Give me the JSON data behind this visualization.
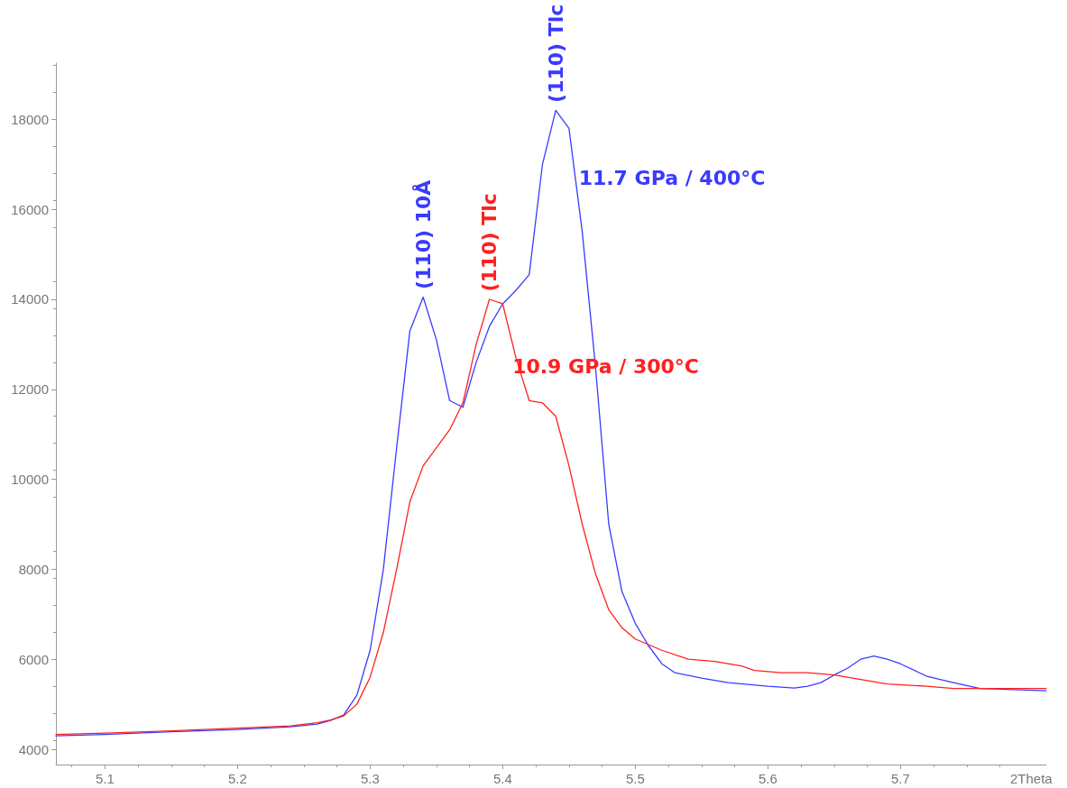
{
  "chart_data": {
    "type": "line",
    "xlabel": "2Theta",
    "xlim": [
      5.063,
      5.81
    ],
    "xticks": [
      5.1,
      5.2,
      5.3,
      5.4,
      5.5,
      5.6,
      5.7
    ],
    "ylim": [
      3660,
      19250
    ],
    "yticks": [
      4000,
      6000,
      8000,
      10000,
      12000,
      14000,
      16000,
      18000
    ],
    "grid": false,
    "legend": false,
    "marker": "none",
    "line_style": "solid",
    "series": [
      {
        "name": "11.7 GPa / 400°C",
        "color": "#3a3aff",
        "x": [
          5.063,
          5.1,
          5.15,
          5.2,
          5.24,
          5.26,
          5.27,
          5.28,
          5.29,
          5.3,
          5.31,
          5.32,
          5.33,
          5.34,
          5.35,
          5.36,
          5.37,
          5.38,
          5.39,
          5.4,
          5.41,
          5.42,
          5.43,
          5.44,
          5.45,
          5.46,
          5.47,
          5.48,
          5.49,
          5.5,
          5.51,
          5.52,
          5.53,
          5.55,
          5.57,
          5.6,
          5.62,
          5.63,
          5.64,
          5.65,
          5.66,
          5.67,
          5.68,
          5.69,
          5.7,
          5.72,
          5.74,
          5.76,
          5.78,
          5.81
        ],
        "values": [
          4300,
          4330,
          4390,
          4440,
          4500,
          4560,
          4640,
          4760,
          5200,
          6200,
          8000,
          10700,
          13300,
          14050,
          13100,
          11750,
          11600,
          12600,
          13400,
          13900,
          14200,
          14550,
          17000,
          18200,
          17800,
          15500,
          12500,
          9000,
          7500,
          6800,
          6300,
          5900,
          5700,
          5580,
          5480,
          5400,
          5360,
          5400,
          5480,
          5650,
          5800,
          6000,
          6070,
          6000,
          5900,
          5620,
          5480,
          5350,
          5330,
          5300
        ]
      },
      {
        "name": "10.9 GPa / 300°C",
        "color": "#ff2020",
        "x": [
          5.063,
          5.1,
          5.15,
          5.2,
          5.24,
          5.26,
          5.27,
          5.28,
          5.29,
          5.3,
          5.31,
          5.32,
          5.33,
          5.34,
          5.35,
          5.36,
          5.37,
          5.38,
          5.39,
          5.4,
          5.41,
          5.42,
          5.43,
          5.44,
          5.45,
          5.46,
          5.47,
          5.48,
          5.49,
          5.5,
          5.52,
          5.54,
          5.56,
          5.58,
          5.59,
          5.61,
          5.63,
          5.65,
          5.67,
          5.69,
          5.72,
          5.74,
          5.78,
          5.81
        ],
        "values": [
          4330,
          4360,
          4410,
          4470,
          4520,
          4590,
          4650,
          4740,
          5000,
          5600,
          6600,
          8000,
          9500,
          10300,
          10700,
          11100,
          11700,
          13000,
          14000,
          13900,
          12700,
          11750,
          11700,
          11400,
          10300,
          9000,
          7900,
          7100,
          6700,
          6450,
          6200,
          6000,
          5950,
          5850,
          5750,
          5700,
          5700,
          5650,
          5550,
          5450,
          5400,
          5350,
          5350,
          5350
        ]
      }
    ],
    "annotations": [
      {
        "text": "(110) 10Å",
        "x": 5.34,
        "y": 14050
      },
      {
        "text": "(110) Tlc",
        "x": 5.39,
        "y": 14000
      },
      {
        "text": "(110) Tlc",
        "x": 5.44,
        "y": 18200
      }
    ]
  }
}
